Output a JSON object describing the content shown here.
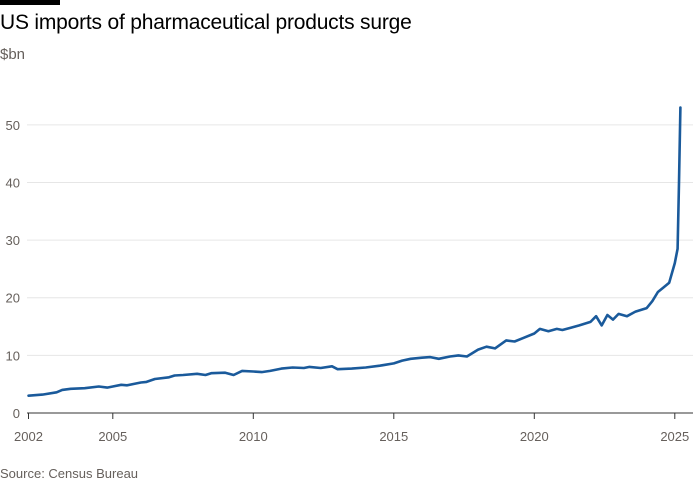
{
  "header": {
    "title": "US imports of pharmaceutical products surge",
    "unit": "$bn"
  },
  "footer": {
    "source": "Source: Census Bureau"
  },
  "colors": {
    "series": "#1a5a9b",
    "grid": "#e6e6e6",
    "axis": "#333333"
  },
  "chart_data": {
    "type": "line",
    "xlim": [
      2002,
      2025.5
    ],
    "ylim": [
      0,
      55
    ],
    "x_ticks": [
      2002,
      2005,
      2010,
      2015,
      2020,
      2025
    ],
    "y_ticks": [
      0,
      10,
      20,
      30,
      40,
      50
    ],
    "x_tick_labels": [
      "2002",
      "2005",
      "2010",
      "2015",
      "2020",
      "2025"
    ],
    "y_tick_labels": [
      "0",
      "10",
      "20",
      "30",
      "40",
      "50"
    ],
    "grid": true,
    "xlabel": "",
    "ylabel": "",
    "series": [
      {
        "x": [
          2002.0,
          2002.5,
          2003.0,
          2003.2,
          2003.5,
          2004.0,
          2004.5,
          2004.8,
          2005.0,
          2005.3,
          2005.5,
          2005.8,
          2006.0,
          2006.2,
          2006.5,
          2007.0,
          2007.2,
          2007.5,
          2008.0,
          2008.3,
          2008.5,
          2009.0,
          2009.3,
          2009.6,
          2010.0,
          2010.3,
          2010.6,
          2011.0,
          2011.4,
          2011.8,
          2012.0,
          2012.4,
          2012.8,
          2013.0,
          2013.5,
          2014.0,
          2014.5,
          2015.0,
          2015.3,
          2015.6,
          2016.0,
          2016.3,
          2016.6,
          2017.0,
          2017.3,
          2017.6,
          2018.0,
          2018.3,
          2018.6,
          2019.0,
          2019.3,
          2019.6,
          2020.0,
          2020.2,
          2020.5,
          2020.8,
          2021.0,
          2021.3,
          2021.6,
          2022.0,
          2022.2,
          2022.4,
          2022.6,
          2022.8,
          2023.0,
          2023.3,
          2023.6,
          2024.0,
          2024.2,
          2024.4,
          2024.6,
          2024.8,
          2025.0,
          2025.1,
          2025.15,
          2025.2
        ],
        "values": [
          3.0,
          3.2,
          3.6,
          4.0,
          4.2,
          4.3,
          4.6,
          4.4,
          4.6,
          4.9,
          4.8,
          5.1,
          5.3,
          5.4,
          5.9,
          6.2,
          6.5,
          6.6,
          6.8,
          6.6,
          6.9,
          7.0,
          6.6,
          7.3,
          7.2,
          7.1,
          7.3,
          7.7,
          7.9,
          7.8,
          8.0,
          7.8,
          8.1,
          7.6,
          7.7,
          7.9,
          8.2,
          8.6,
          9.1,
          9.4,
          9.6,
          9.7,
          9.4,
          9.8,
          10.0,
          9.8,
          11.0,
          11.5,
          11.2,
          12.6,
          12.4,
          13.0,
          13.8,
          14.6,
          14.2,
          14.6,
          14.4,
          14.8,
          15.2,
          15.8,
          16.8,
          15.2,
          17.0,
          16.2,
          17.2,
          16.8,
          17.6,
          18.2,
          19.4,
          21.0,
          21.8,
          22.6,
          26.0,
          28.5,
          40.0,
          53.0
        ]
      }
    ]
  }
}
